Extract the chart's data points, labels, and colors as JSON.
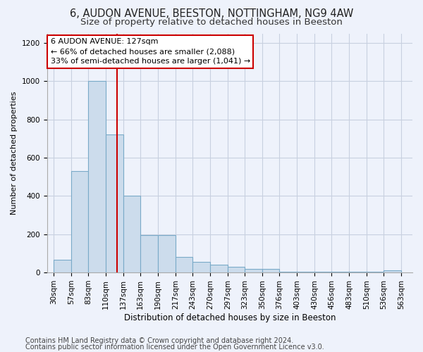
{
  "title1": "6, AUDON AVENUE, BEESTON, NOTTINGHAM, NG9 4AW",
  "title2": "Size of property relative to detached houses in Beeston",
  "xlabel": "Distribution of detached houses by size in Beeston",
  "ylabel": "Number of detached properties",
  "footer1": "Contains HM Land Registry data © Crown copyright and database right 2024.",
  "footer2": "Contains public sector information licensed under the Open Government Licence v3.0.",
  "annotation_line1": "6 AUDON AVENUE: 127sqm",
  "annotation_line2": "← 66% of detached houses are smaller (2,088)",
  "annotation_line3": "33% of semi-detached houses are larger (1,041) →",
  "bar_edges": [
    30,
    57,
    83,
    110,
    137,
    163,
    190,
    217,
    243,
    270,
    297,
    323,
    350,
    376,
    403,
    430,
    456,
    483,
    510,
    536,
    563
  ],
  "bar_values": [
    65,
    530,
    1000,
    720,
    400,
    195,
    195,
    80,
    55,
    40,
    30,
    18,
    18,
    5,
    5,
    5,
    5,
    5,
    5,
    12
  ],
  "bar_color": "#ccdcec",
  "bar_edge_color": "#7aaac8",
  "vline_x": 127,
  "vline_color": "#cc0000",
  "ylim": [
    0,
    1250
  ],
  "yticks": [
    0,
    200,
    400,
    600,
    800,
    1000,
    1200
  ],
  "xlim": [
    20,
    580
  ],
  "background_color": "#eef2fb",
  "grid_color": "#c8d0e0",
  "annotation_box_facecolor": "#ffffff",
  "annotation_box_edgecolor": "#cc0000",
  "title1_fontsize": 10.5,
  "title2_fontsize": 9.5,
  "xlabel_fontsize": 8.5,
  "ylabel_fontsize": 8,
  "tick_fontsize": 7.5,
  "annotation_fontsize": 8,
  "footer_fontsize": 7
}
